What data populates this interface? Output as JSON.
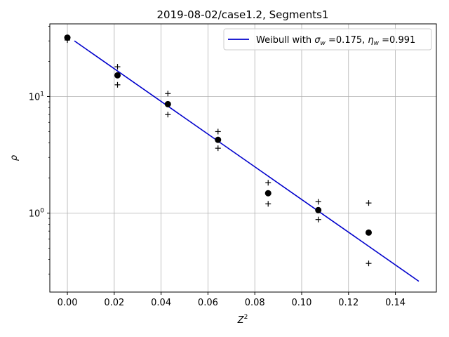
{
  "chart_data": {
    "type": "scatter",
    "title": "2019-08-02/case1.2, Segments1",
    "xlabel_base": "Z",
    "xlabel_sup": "2",
    "ylabel": "ρ",
    "y_scale": "log",
    "grid": true,
    "legend_position": "top-right",
    "xlim": [
      -0.0075,
      0.1575
    ],
    "ylim": [
      0.21,
      42
    ],
    "x_ticks": [
      {
        "value": 0.0,
        "label": "0.00"
      },
      {
        "value": 0.02,
        "label": "0.02"
      },
      {
        "value": 0.04,
        "label": "0.04"
      },
      {
        "value": 0.06,
        "label": "0.06"
      },
      {
        "value": 0.08,
        "label": "0.08"
      },
      {
        "value": 0.1,
        "label": "0.10"
      },
      {
        "value": 0.12,
        "label": "0.12"
      },
      {
        "value": 0.14,
        "label": "0.14"
      }
    ],
    "y_ticks": [
      {
        "value": 1,
        "base": "10",
        "exp": "0"
      },
      {
        "value": 10,
        "base": "10",
        "exp": "1"
      }
    ],
    "y_minor_ticks": [
      0.3,
      0.4,
      0.5,
      0.6,
      0.7,
      0.8,
      0.9,
      2,
      3,
      4,
      5,
      6,
      7,
      8,
      9,
      20,
      30,
      40
    ],
    "series": [
      {
        "kind": "points",
        "marker": "circle",
        "color": "#000000",
        "x": [
          0.0,
          0.0214,
          0.0429,
          0.0643,
          0.0857,
          0.1071,
          0.1286
        ],
        "y": [
          32.0,
          15.2,
          8.6,
          4.25,
          1.48,
          1.06,
          0.68
        ]
      },
      {
        "kind": "upper_bound",
        "marker": "plus",
        "color": "#000000",
        "x": [
          0.0214,
          0.0429,
          0.0643,
          0.0857,
          0.1071,
          0.1286
        ],
        "y": [
          18.0,
          10.6,
          5.0,
          1.82,
          1.25,
          1.22
        ]
      },
      {
        "kind": "lower_bound",
        "marker": "plus",
        "color": "#000000",
        "x": [
          0.0,
          0.0214,
          0.0429,
          0.0643,
          0.0857,
          0.1071,
          0.1286
        ],
        "y": [
          30.5,
          12.6,
          7.0,
          3.6,
          1.2,
          0.88,
          0.37
        ]
      },
      {
        "kind": "line",
        "color": "#0000cc",
        "x": [
          0.003,
          0.15
        ],
        "y": [
          30.0,
          0.26
        ]
      }
    ],
    "legend": {
      "prefix": "Weibull with ",
      "sigma_sym": "σ",
      "sigma_sub": "w",
      "sigma_val": " =0.175, ",
      "eta_sym": "η",
      "eta_sub": "w",
      "eta_val": " =0.991"
    }
  }
}
